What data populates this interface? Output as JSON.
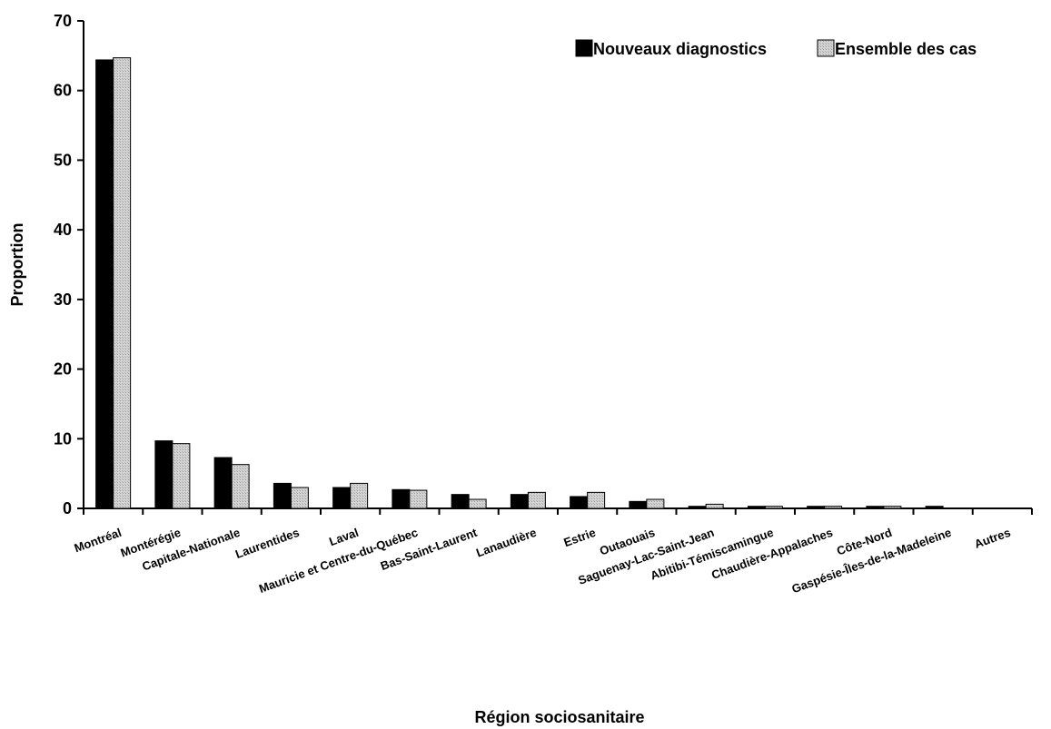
{
  "chart_data": {
    "type": "bar",
    "title": "",
    "xlabel": "Région sociosanitaire",
    "ylabel": "Proportion",
    "ylim": [
      0,
      70
    ],
    "yticks": [
      0,
      10,
      20,
      30,
      40,
      50,
      60,
      70
    ],
    "grid": false,
    "legend_position": "top-right",
    "categories": [
      "Montréal",
      "Montérégie",
      "Capitale-Nationale",
      "Laurentides",
      "Laval",
      "Mauricie et Centre-du-Québec",
      "Bas-Saint-Laurent",
      "Lanaudière",
      "Estrie",
      "Outaouais",
      "Saguenay-Lac-Saint-Jean",
      "Abitibi-Témiscamingue",
      "Chaudière-Appalaches",
      "Côte-Nord",
      "Gaspésie-Îles-de-la-Madeleine",
      "Autres"
    ],
    "series": [
      {
        "name": "Nouveaux diagnostics",
        "color": "#000000",
        "values": [
          64.4,
          9.7,
          7.3,
          3.6,
          3.0,
          2.7,
          2.0,
          2.0,
          1.7,
          1.0,
          0.3,
          0.3,
          0.3,
          0.3,
          0.3,
          0.0
        ]
      },
      {
        "name": "Ensemble des cas",
        "color": "#c8c8c8",
        "values": [
          64.7,
          9.3,
          6.3,
          3.0,
          3.6,
          2.6,
          1.3,
          2.3,
          2.3,
          1.3,
          0.6,
          0.3,
          0.3,
          0.3,
          0.0,
          0.0
        ]
      }
    ]
  }
}
